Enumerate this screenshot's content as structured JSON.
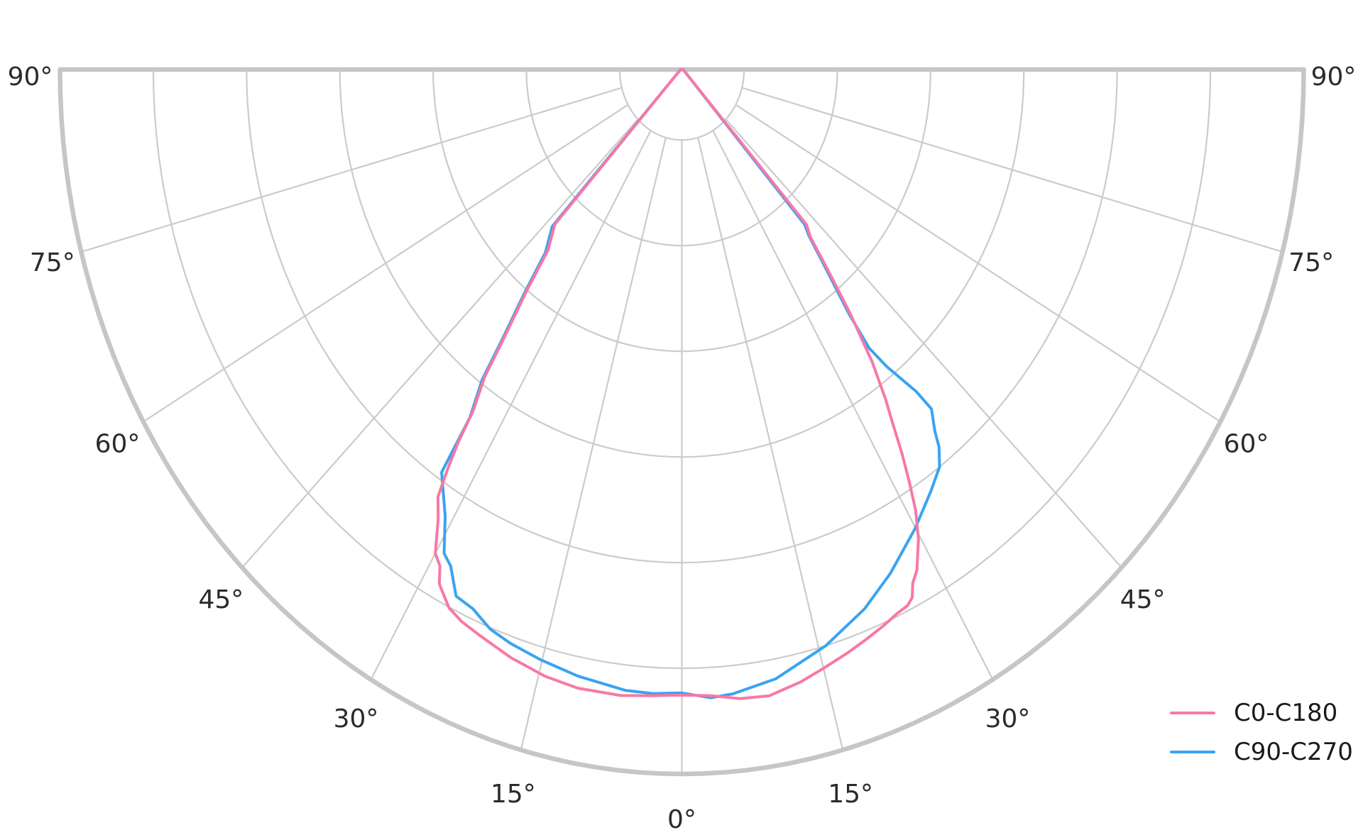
{
  "chart_data": {
    "type": "line",
    "subtype": "polar-photometric",
    "title": "",
    "background": "#ffffff",
    "grid": {
      "on": true,
      "color": "#cbcbcb",
      "border_color": "#c6c6c6",
      "ring_fractions": [
        0.1,
        0.25,
        0.4,
        0.55,
        0.7,
        0.85
      ],
      "outer_ring_fraction": 1.0,
      "spoke_angles_deg": [
        -75,
        -60,
        -45,
        -30,
        -15,
        0,
        15,
        30,
        45,
        60,
        75
      ],
      "spoke_inner_fraction": 0.1
    },
    "angular_axis": {
      "zero_direction": "down",
      "range_deg": [
        -90,
        90
      ],
      "tick_angles_deg": [
        -90,
        -75,
        -60,
        -45,
        -30,
        -15,
        0,
        15,
        30,
        45,
        60,
        75,
        90
      ],
      "tick_labels": [
        "90°",
        "75°",
        "60°",
        "45°",
        "30°",
        "15°",
        "0°",
        "15°",
        "30°",
        "45°",
        "60°",
        "75°",
        "90°"
      ]
    },
    "radial_axis": {
      "labels_visible": false,
      "normalized_max": 1.0
    },
    "legend": {
      "position": "lower-right",
      "entries": [
        {
          "label": "C0-C180",
          "color": "#f778a6"
        },
        {
          "label": "C90-C270",
          "color": "#3aa3f1"
        }
      ]
    },
    "series": [
      {
        "name": "C0-C180",
        "color": "#f778a6",
        "points_deg_r": [
          [
            -90,
            0.002
          ],
          [
            -42.9,
            0.3
          ],
          [
            -40.0,
            0.335
          ],
          [
            -38.5,
            0.4
          ],
          [
            -37.0,
            0.47
          ],
          [
            -36.0,
            0.54
          ],
          [
            -34.7,
            0.59
          ],
          [
            -34.2,
            0.64
          ],
          [
            -33.6,
            0.68
          ],
          [
            -32.9,
            0.722
          ],
          [
            -31.5,
            0.75
          ],
          [
            -30.0,
            0.793
          ],
          [
            -28.9,
            0.805
          ],
          [
            -28.1,
            0.828
          ],
          [
            -26.1,
            0.851
          ],
          [
            -24.3,
            0.86
          ],
          [
            -21.9,
            0.867
          ],
          [
            -18.2,
            0.879
          ],
          [
            -14.3,
            0.889
          ],
          [
            -10.8,
            0.894
          ],
          [
            -6.3,
            0.894
          ],
          [
            -3.0,
            0.89
          ],
          [
            0.0,
            0.888
          ],
          [
            3.0,
            0.89
          ],
          [
            6.0,
            0.898
          ],
          [
            9.0,
            0.9
          ],
          [
            12.4,
            0.89
          ],
          [
            15.0,
            0.88
          ],
          [
            17.8,
            0.87
          ],
          [
            20.0,
            0.862
          ],
          [
            22.2,
            0.854
          ],
          [
            24.2,
            0.846
          ],
          [
            25.5,
            0.843
          ],
          [
            26.3,
            0.836
          ],
          [
            27.0,
            0.818
          ],
          [
            28.0,
            0.805
          ],
          [
            29.7,
            0.768
          ],
          [
            31.0,
            0.73
          ],
          [
            32.0,
            0.69
          ],
          [
            33.0,
            0.65
          ],
          [
            34.0,
            0.607
          ],
          [
            35.0,
            0.571
          ],
          [
            36.4,
            0.516
          ],
          [
            38.0,
            0.44
          ],
          [
            39.5,
            0.37
          ],
          [
            41.0,
            0.315
          ],
          [
            42.3,
            0.298
          ],
          [
            90,
            0.002
          ]
        ]
      },
      {
        "name": "C90-C270",
        "color": "#3aa3f1",
        "points_deg_r": [
          [
            -90,
            0.002
          ],
          [
            -43.1,
            0.305
          ],
          [
            -40.2,
            0.34
          ],
          [
            -38.6,
            0.405
          ],
          [
            -37.1,
            0.475
          ],
          [
            -36.1,
            0.545
          ],
          [
            -34.6,
            0.6
          ],
          [
            -34.05,
            0.69
          ],
          [
            -33.0,
            0.706
          ],
          [
            -31.0,
            0.739
          ],
          [
            -29.1,
            0.786
          ],
          [
            -27.8,
            0.797
          ],
          [
            -25.9,
            0.831
          ],
          [
            -23.7,
            0.836
          ],
          [
            -21.2,
            0.852
          ],
          [
            -18.7,
            0.86
          ],
          [
            -15.2,
            0.868
          ],
          [
            -11.0,
            0.877
          ],
          [
            -5.9,
            0.886
          ],
          [
            -3.0,
            0.887
          ],
          [
            0.0,
            0.885
          ],
          [
            3.0,
            0.893
          ],
          [
            5.3,
            0.89
          ],
          [
            9.9,
            0.878
          ],
          [
            15.8,
            0.85
          ],
          [
            21.0,
            0.82
          ],
          [
            25.1,
            0.79
          ],
          [
            29.9,
            0.752
          ],
          [
            33.8,
            0.72
          ],
          [
            36.3,
            0.7
          ],
          [
            37.65,
            0.677
          ],
          [
            38.4,
            0.655
          ],
          [
            39.8,
            0.627
          ],
          [
            39.5,
            0.592
          ],
          [
            38.0,
            0.535
          ],
          [
            37.3,
            0.497
          ],
          [
            37.8,
            0.437
          ],
          [
            39.3,
            0.367
          ],
          [
            40.9,
            0.312
          ],
          [
            41.9,
            0.296
          ],
          [
            90,
            0.002
          ]
        ]
      }
    ]
  }
}
